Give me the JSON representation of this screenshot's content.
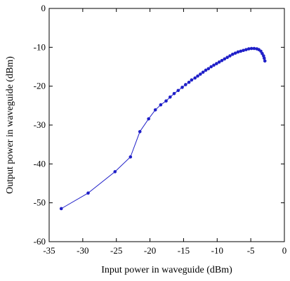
{
  "chart_data": {
    "type": "line",
    "title": "",
    "xlabel": "Input power in waveguide (dBm)",
    "ylabel": "Output power in waveguide (dBm)",
    "xlim": [
      -35,
      0
    ],
    "ylim": [
      -60,
      0
    ],
    "x_ticks": [
      -35,
      -30,
      -25,
      -20,
      -15,
      -10,
      -5,
      0
    ],
    "y_ticks": [
      0,
      -10,
      -20,
      -30,
      -40,
      -50,
      -60
    ],
    "grid": false,
    "legend": "none",
    "series_color": "#1f1fc8",
    "series": [
      {
        "x": [
          -33.2,
          -29.2,
          -25.2,
          -22.9,
          -21.5,
          -20.2,
          -19.2,
          -18.4,
          -17.6,
          -17.0,
          -16.4,
          -15.8,
          -15.2,
          -14.7,
          -14.2,
          -13.8,
          -13.3,
          -12.9,
          -12.5,
          -12.1,
          -11.7,
          -11.3,
          -10.9,
          -10.5,
          -10.1,
          -9.7,
          -9.3,
          -8.9,
          -8.5,
          -8.1,
          -7.7,
          -7.3,
          -6.9,
          -6.5,
          -6.1,
          -5.7,
          -5.3,
          -4.9,
          -4.5,
          -4.1,
          -3.8,
          -3.5,
          -3.3,
          -3.1,
          -3.0,
          -2.9
        ],
        "y": [
          -51.5,
          -47.5,
          -42.0,
          -38.2,
          -31.7,
          -28.4,
          -26.1,
          -24.8,
          -23.8,
          -22.8,
          -21.9,
          -21.1,
          -20.3,
          -19.6,
          -19.0,
          -18.4,
          -17.9,
          -17.4,
          -16.9,
          -16.4,
          -15.9,
          -15.5,
          -15.0,
          -14.6,
          -14.2,
          -13.8,
          -13.4,
          -13.0,
          -12.6,
          -12.2,
          -11.8,
          -11.5,
          -11.2,
          -11.0,
          -10.8,
          -10.6,
          -10.4,
          -10.3,
          -10.3,
          -10.4,
          -10.6,
          -11.0,
          -11.6,
          -12.2,
          -12.8,
          -13.5
        ]
      }
    ]
  }
}
